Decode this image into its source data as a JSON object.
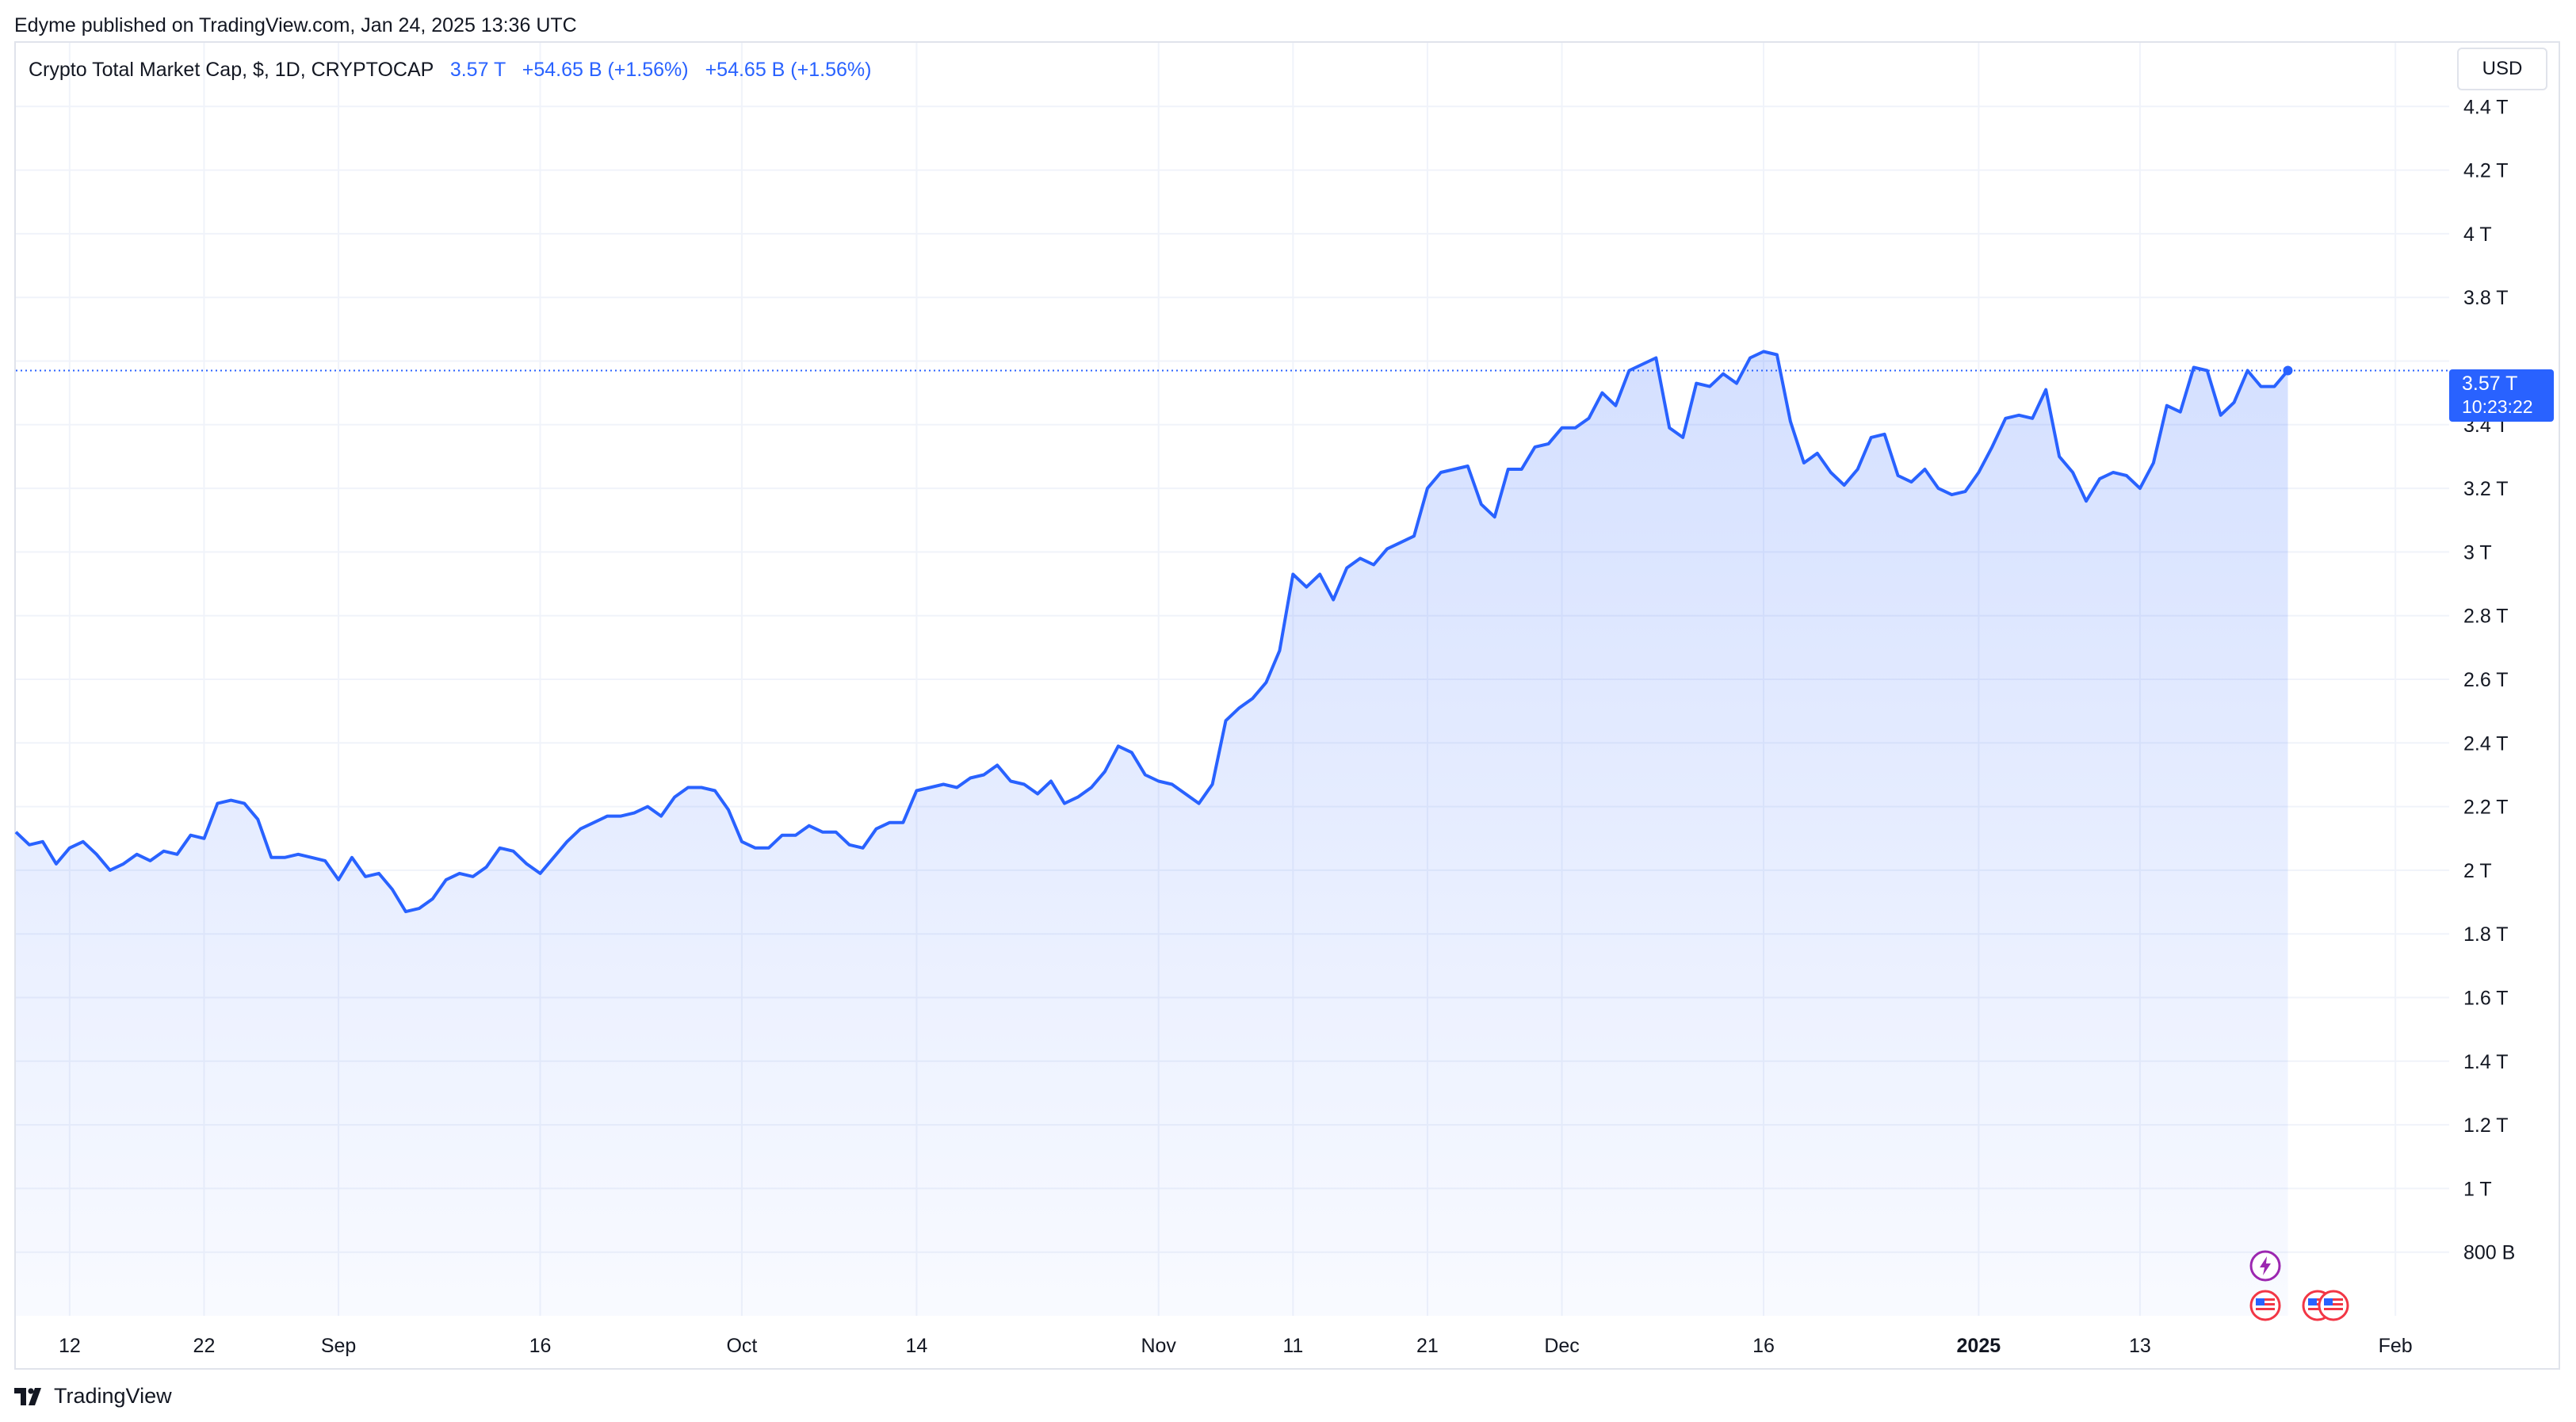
{
  "publisher": "Edyme published on TradingView.com, Jan 24, 2025 13:36 UTC",
  "legend": {
    "symbol": "Crypto Total Market Cap, $, 1D, CRYPTOCAP",
    "last": "3.57 T",
    "change1": "+54.65 B (+1.56%)",
    "change2": "+54.65 B (+1.56%)"
  },
  "currency": "USD",
  "price_label": {
    "price": "3.57 T",
    "countdown": "10:23:22"
  },
  "brand": "TradingView",
  "colors": {
    "line": "#2962ff",
    "grid": "#f0f3fa",
    "text": "#131722"
  },
  "events": [
    "lightning-event-icon",
    "us-flag-event-icon",
    "us-flag-event-icon",
    "us-flag-event-icon"
  ],
  "chart_data": {
    "type": "area",
    "title": "Crypto Total Market Cap, $, 1D, CRYPTOCAP",
    "xlabel": "",
    "ylabel": "",
    "y_unit": "T",
    "ylim": [
      0.6,
      4.6
    ],
    "y_ticks": [
      {
        "value": 0.8,
        "label": "800 B"
      },
      {
        "value": 1.0,
        "label": "1 T"
      },
      {
        "value": 1.2,
        "label": "1.2 T"
      },
      {
        "value": 1.4,
        "label": "1.4 T"
      },
      {
        "value": 1.6,
        "label": "1.6 T"
      },
      {
        "value": 1.8,
        "label": "1.8 T"
      },
      {
        "value": 2.0,
        "label": "2 T"
      },
      {
        "value": 2.2,
        "label": "2.2 T"
      },
      {
        "value": 2.4,
        "label": "2.4 T"
      },
      {
        "value": 2.6,
        "label": "2.6 T"
      },
      {
        "value": 2.8,
        "label": "2.8 T"
      },
      {
        "value": 3.0,
        "label": "3 T"
      },
      {
        "value": 3.2,
        "label": "3.2 T"
      },
      {
        "value": 3.4,
        "label": "3.4 T"
      },
      {
        "value": 3.8,
        "label": "3.8 T"
      },
      {
        "value": 4.0,
        "label": "4 T"
      },
      {
        "value": 4.2,
        "label": "4.2 T"
      },
      {
        "value": 4.4,
        "label": "4.4 T"
      }
    ],
    "x_start": "2024-08-08",
    "x_end": "2025-02-05",
    "x_ticks": [
      {
        "date": "2024-08-12",
        "label": "12",
        "bold": false
      },
      {
        "date": "2024-08-22",
        "label": "22",
        "bold": false
      },
      {
        "date": "2024-09-01",
        "label": "Sep",
        "bold": false
      },
      {
        "date": "2024-09-16",
        "label": "16",
        "bold": false
      },
      {
        "date": "2024-10-01",
        "label": "Oct",
        "bold": false
      },
      {
        "date": "2024-10-14",
        "label": "14",
        "bold": false
      },
      {
        "date": "2024-11-01",
        "label": "Nov",
        "bold": false
      },
      {
        "date": "2024-11-11",
        "label": "11",
        "bold": false
      },
      {
        "date": "2024-11-21",
        "label": "21",
        "bold": false
      },
      {
        "date": "2024-12-01",
        "label": "Dec",
        "bold": false
      },
      {
        "date": "2024-12-16",
        "label": "16",
        "bold": false
      },
      {
        "date": "2025-01-01",
        "label": "2025",
        "bold": true
      },
      {
        "date": "2025-01-13",
        "label": "13",
        "bold": false
      },
      {
        "date": "2025-02-01",
        "label": "Feb",
        "bold": false
      }
    ],
    "series": [
      {
        "values": [
          [
            "2024-08-08",
            2.12
          ],
          [
            "2024-08-09",
            2.08
          ],
          [
            "2024-08-10",
            2.09
          ],
          [
            "2024-08-11",
            2.02
          ],
          [
            "2024-08-12",
            2.07
          ],
          [
            "2024-08-13",
            2.09
          ],
          [
            "2024-08-14",
            2.05
          ],
          [
            "2024-08-15",
            2.0
          ],
          [
            "2024-08-16",
            2.02
          ],
          [
            "2024-08-17",
            2.05
          ],
          [
            "2024-08-18",
            2.03
          ],
          [
            "2024-08-19",
            2.06
          ],
          [
            "2024-08-20",
            2.05
          ],
          [
            "2024-08-21",
            2.11
          ],
          [
            "2024-08-22",
            2.1
          ],
          [
            "2024-08-23",
            2.21
          ],
          [
            "2024-08-24",
            2.22
          ],
          [
            "2024-08-25",
            2.21
          ],
          [
            "2024-08-26",
            2.16
          ],
          [
            "2024-08-27",
            2.04
          ],
          [
            "2024-08-28",
            2.04
          ],
          [
            "2024-08-29",
            2.05
          ],
          [
            "2024-08-30",
            2.04
          ],
          [
            "2024-08-31",
            2.03
          ],
          [
            "2024-09-01",
            1.97
          ],
          [
            "2024-09-02",
            2.04
          ],
          [
            "2024-09-03",
            1.98
          ],
          [
            "2024-09-04",
            1.99
          ],
          [
            "2024-09-05",
            1.94
          ],
          [
            "2024-09-06",
            1.87
          ],
          [
            "2024-09-07",
            1.88
          ],
          [
            "2024-09-08",
            1.91
          ],
          [
            "2024-09-09",
            1.97
          ],
          [
            "2024-09-10",
            1.99
          ],
          [
            "2024-09-11",
            1.98
          ],
          [
            "2024-09-12",
            2.01
          ],
          [
            "2024-09-13",
            2.07
          ],
          [
            "2024-09-14",
            2.06
          ],
          [
            "2024-09-15",
            2.02
          ],
          [
            "2024-09-16",
            1.99
          ],
          [
            "2024-09-17",
            2.04
          ],
          [
            "2024-09-18",
            2.09
          ],
          [
            "2024-09-19",
            2.13
          ],
          [
            "2024-09-20",
            2.15
          ],
          [
            "2024-09-21",
            2.17
          ],
          [
            "2024-09-22",
            2.17
          ],
          [
            "2024-09-23",
            2.18
          ],
          [
            "2024-09-24",
            2.2
          ],
          [
            "2024-09-25",
            2.17
          ],
          [
            "2024-09-26",
            2.23
          ],
          [
            "2024-09-27",
            2.26
          ],
          [
            "2024-09-28",
            2.26
          ],
          [
            "2024-09-29",
            2.25
          ],
          [
            "2024-09-30",
            2.19
          ],
          [
            "2024-10-01",
            2.09
          ],
          [
            "2024-10-02",
            2.07
          ],
          [
            "2024-10-03",
            2.07
          ],
          [
            "2024-10-04",
            2.11
          ],
          [
            "2024-10-05",
            2.11
          ],
          [
            "2024-10-06",
            2.14
          ],
          [
            "2024-10-07",
            2.12
          ],
          [
            "2024-10-08",
            2.12
          ],
          [
            "2024-10-09",
            2.08
          ],
          [
            "2024-10-10",
            2.07
          ],
          [
            "2024-10-11",
            2.13
          ],
          [
            "2024-10-12",
            2.15
          ],
          [
            "2024-10-13",
            2.15
          ],
          [
            "2024-10-14",
            2.25
          ],
          [
            "2024-10-15",
            2.26
          ],
          [
            "2024-10-16",
            2.27
          ],
          [
            "2024-10-17",
            2.26
          ],
          [
            "2024-10-18",
            2.29
          ],
          [
            "2024-10-19",
            2.3
          ],
          [
            "2024-10-20",
            2.33
          ],
          [
            "2024-10-21",
            2.28
          ],
          [
            "2024-10-22",
            2.27
          ],
          [
            "2024-10-23",
            2.24
          ],
          [
            "2024-10-24",
            2.28
          ],
          [
            "2024-10-25",
            2.21
          ],
          [
            "2024-10-26",
            2.23
          ],
          [
            "2024-10-27",
            2.26
          ],
          [
            "2024-10-28",
            2.31
          ],
          [
            "2024-10-29",
            2.39
          ],
          [
            "2024-10-30",
            2.37
          ],
          [
            "2024-10-31",
            2.3
          ],
          [
            "2024-11-01",
            2.28
          ],
          [
            "2024-11-02",
            2.27
          ],
          [
            "2024-11-03",
            2.24
          ],
          [
            "2024-11-04",
            2.21
          ],
          [
            "2024-11-05",
            2.27
          ],
          [
            "2024-11-06",
            2.47
          ],
          [
            "2024-11-07",
            2.51
          ],
          [
            "2024-11-08",
            2.54
          ],
          [
            "2024-11-09",
            2.59
          ],
          [
            "2024-11-10",
            2.69
          ],
          [
            "2024-11-11",
            2.93
          ],
          [
            "2024-11-12",
            2.89
          ],
          [
            "2024-11-13",
            2.93
          ],
          [
            "2024-11-14",
            2.85
          ],
          [
            "2024-11-15",
            2.95
          ],
          [
            "2024-11-16",
            2.98
          ],
          [
            "2024-11-17",
            2.96
          ],
          [
            "2024-11-18",
            3.01
          ],
          [
            "2024-11-19",
            3.03
          ],
          [
            "2024-11-20",
            3.05
          ],
          [
            "2024-11-21",
            3.2
          ],
          [
            "2024-11-22",
            3.25
          ],
          [
            "2024-11-23",
            3.26
          ],
          [
            "2024-11-24",
            3.27
          ],
          [
            "2024-11-25",
            3.15
          ],
          [
            "2024-11-26",
            3.11
          ],
          [
            "2024-11-27",
            3.26
          ],
          [
            "2024-11-28",
            3.26
          ],
          [
            "2024-11-29",
            3.33
          ],
          [
            "2024-11-30",
            3.34
          ],
          [
            "2024-12-01",
            3.39
          ],
          [
            "2024-12-02",
            3.39
          ],
          [
            "2024-12-03",
            3.42
          ],
          [
            "2024-12-04",
            3.5
          ],
          [
            "2024-12-05",
            3.46
          ],
          [
            "2024-12-06",
            3.57
          ],
          [
            "2024-12-07",
            3.59
          ],
          [
            "2024-12-08",
            3.61
          ],
          [
            "2024-12-09",
            3.39
          ],
          [
            "2024-12-10",
            3.36
          ],
          [
            "2024-12-11",
            3.53
          ],
          [
            "2024-12-12",
            3.52
          ],
          [
            "2024-12-13",
            3.56
          ],
          [
            "2024-12-14",
            3.53
          ],
          [
            "2024-12-15",
            3.61
          ],
          [
            "2024-12-16",
            3.63
          ],
          [
            "2024-12-17",
            3.62
          ],
          [
            "2024-12-18",
            3.41
          ],
          [
            "2024-12-19",
            3.28
          ],
          [
            "2024-12-20",
            3.31
          ],
          [
            "2024-12-21",
            3.25
          ],
          [
            "2024-12-22",
            3.21
          ],
          [
            "2024-12-23",
            3.26
          ],
          [
            "2024-12-24",
            3.36
          ],
          [
            "2024-12-25",
            3.37
          ],
          [
            "2024-12-26",
            3.24
          ],
          [
            "2024-12-27",
            3.22
          ],
          [
            "2024-12-28",
            3.26
          ],
          [
            "2024-12-29",
            3.2
          ],
          [
            "2024-12-30",
            3.18
          ],
          [
            "2024-12-31",
            3.19
          ],
          [
            "2025-01-01",
            3.25
          ],
          [
            "2025-01-02",
            3.33
          ],
          [
            "2025-01-03",
            3.42
          ],
          [
            "2025-01-04",
            3.43
          ],
          [
            "2025-01-05",
            3.42
          ],
          [
            "2025-01-06",
            3.51
          ],
          [
            "2025-01-07",
            3.3
          ],
          [
            "2025-01-08",
            3.25
          ],
          [
            "2025-01-09",
            3.16
          ],
          [
            "2025-01-10",
            3.23
          ],
          [
            "2025-01-11",
            3.25
          ],
          [
            "2025-01-12",
            3.24
          ],
          [
            "2025-01-13",
            3.2
          ],
          [
            "2025-01-14",
            3.28
          ],
          [
            "2025-01-15",
            3.46
          ],
          [
            "2025-01-16",
            3.44
          ],
          [
            "2025-01-17",
            3.58
          ],
          [
            "2025-01-18",
            3.57
          ],
          [
            "2025-01-19",
            3.43
          ],
          [
            "2025-01-20",
            3.47
          ],
          [
            "2025-01-21",
            3.57
          ],
          [
            "2025-01-22",
            3.52
          ],
          [
            "2025-01-23",
            3.52
          ],
          [
            "2025-01-24",
            3.57
          ]
        ]
      }
    ],
    "last_value": 3.57,
    "grid": true,
    "legend": "top-left"
  }
}
